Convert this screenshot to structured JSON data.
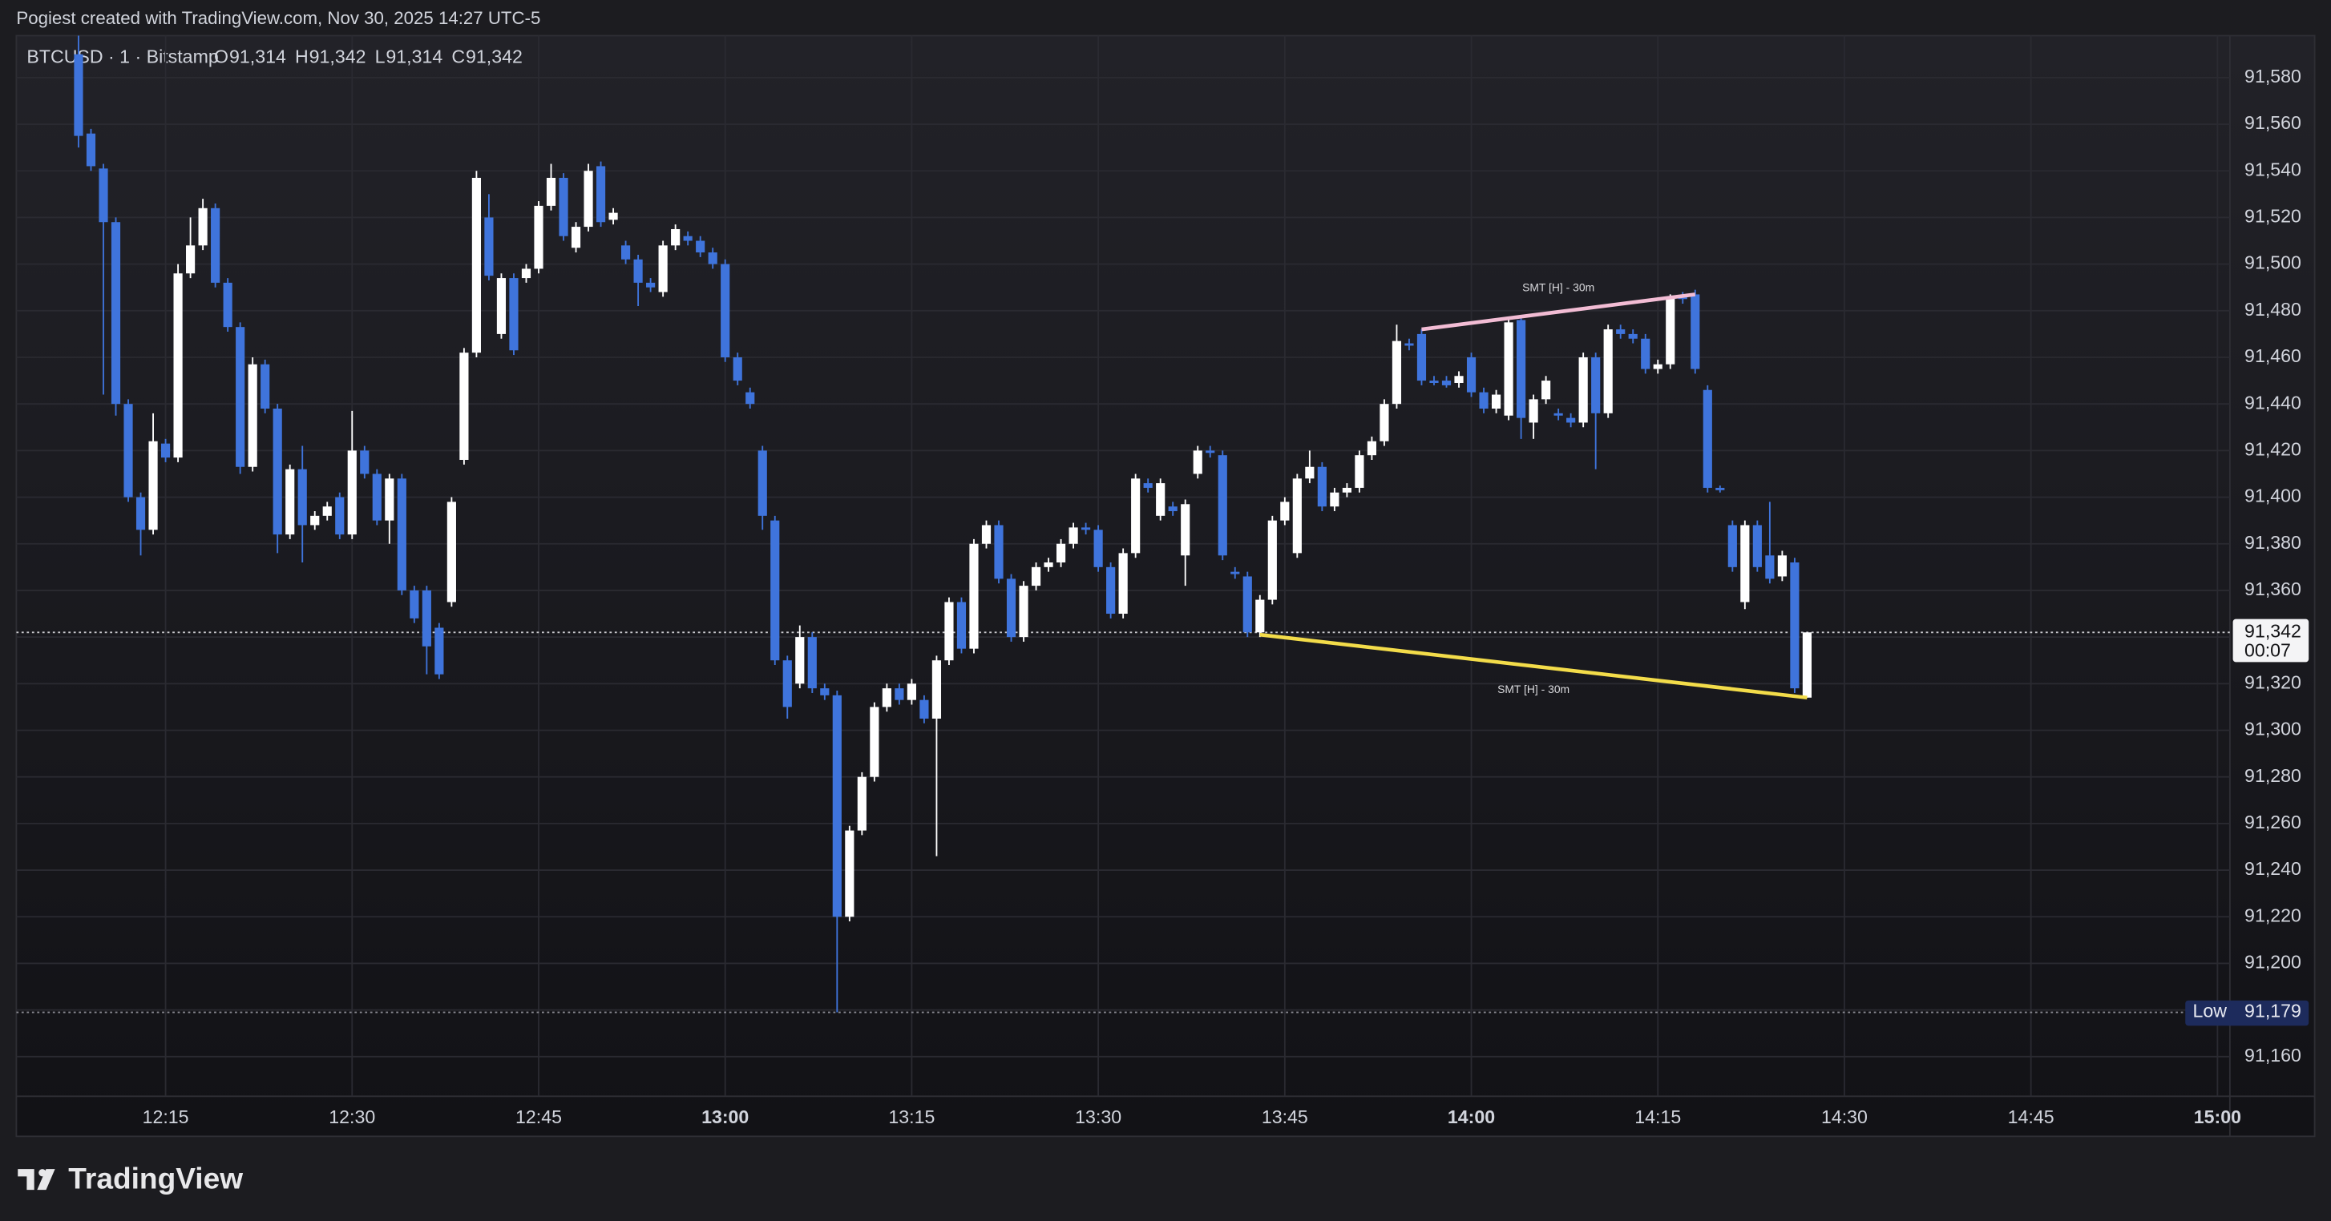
{
  "header": {
    "text": "Pogiest created with TradingView.com, Nov 30, 2025 14:27 UTC-5"
  },
  "logo": {
    "text": "TradingView"
  },
  "chart_data": {
    "type": "candlestick",
    "legend": {
      "symbol": "BTCUSD · 1 · Bitstamp",
      "ohlc": [
        {
          "name": "O",
          "value": "91,314"
        },
        {
          "name": "H",
          "value": "91,342"
        },
        {
          "name": "L",
          "value": "91,314"
        },
        {
          "name": "C",
          "value": "91,342"
        }
      ]
    },
    "up_color": "#ffffff",
    "down_color": "#3f74dc",
    "grid": true,
    "xlim": [
      "12:03",
      "15:01"
    ],
    "xticks": [
      "12:15",
      "12:30",
      "12:45",
      "13:00",
      "13:15",
      "13:30",
      "13:45",
      "14:00",
      "14:15",
      "14:30",
      "14:45",
      "15:00"
    ],
    "ylim": [
      91143,
      91598
    ],
    "yticks": [
      {
        "value": 91160,
        "label": "91,160"
      },
      {
        "value": 91180,
        "label": "91,180"
      },
      {
        "value": 91200,
        "label": "91,200"
      },
      {
        "value": 91220,
        "label": "91,220"
      },
      {
        "value": 91240,
        "label": "91,240"
      },
      {
        "value": 91260,
        "label": "91,260"
      },
      {
        "value": 91280,
        "label": "91,280"
      },
      {
        "value": 91300,
        "label": "91,300"
      },
      {
        "value": 91320,
        "label": "91,320"
      },
      {
        "value": 91340,
        "label": "91,340"
      },
      {
        "value": 91360,
        "label": "91,360"
      },
      {
        "value": 91380,
        "label": "91,380"
      },
      {
        "value": 91400,
        "label": "91,400"
      },
      {
        "value": 91420,
        "label": "91,420"
      },
      {
        "value": 91440,
        "label": "91,440"
      },
      {
        "value": 91460,
        "label": "91,460"
      },
      {
        "value": 91480,
        "label": "91,480"
      },
      {
        "value": 91500,
        "label": "91,500"
      },
      {
        "value": 91520,
        "label": "91,520"
      },
      {
        "value": 91540,
        "label": "91,540"
      },
      {
        "value": 91560,
        "label": "91,560"
      },
      {
        "value": 91580,
        "label": "91,580"
      }
    ],
    "x": [
      "12:08",
      "12:09",
      "12:10",
      "12:11",
      "12:12",
      "12:13",
      "12:14",
      "12:15",
      "12:16",
      "12:17",
      "12:18",
      "12:19",
      "12:20",
      "12:21",
      "12:22",
      "12:23",
      "12:24",
      "12:25",
      "12:26",
      "12:27",
      "12:28",
      "12:29",
      "12:30",
      "12:31",
      "12:32",
      "12:33",
      "12:34",
      "12:35",
      "12:36",
      "12:37",
      "12:38",
      "12:39",
      "12:40",
      "12:41",
      "12:42",
      "12:43",
      "12:44",
      "12:45",
      "12:46",
      "12:47",
      "12:48",
      "12:49",
      "12:50",
      "12:51",
      "12:52",
      "12:53",
      "12:54",
      "12:55",
      "12:56",
      "12:57",
      "12:58",
      "12:59",
      "13:00",
      "13:01",
      "13:02",
      "13:03",
      "13:04",
      "13:05",
      "13:06",
      "13:07",
      "13:08",
      "13:09",
      "13:10",
      "13:11",
      "13:12",
      "13:13",
      "13:14",
      "13:15",
      "13:16",
      "13:17",
      "13:18",
      "13:19",
      "13:20",
      "13:21",
      "13:22",
      "13:23",
      "13:24",
      "13:25",
      "13:26",
      "13:27",
      "13:28",
      "13:29",
      "13:30",
      "13:31",
      "13:32",
      "13:33",
      "13:34",
      "13:35",
      "13:36",
      "13:37",
      "13:38",
      "13:39",
      "13:40",
      "13:41",
      "13:42",
      "13:43",
      "13:44",
      "13:45",
      "13:46",
      "13:47",
      "13:48",
      "13:49",
      "13:50",
      "13:51",
      "13:52",
      "13:53",
      "13:54",
      "13:55",
      "13:56",
      "13:57",
      "13:58",
      "13:59",
      "14:00",
      "14:01",
      "14:02",
      "14:03",
      "14:04",
      "14:05",
      "14:06",
      "14:07",
      "14:08",
      "14:09",
      "14:10",
      "14:11",
      "14:12",
      "14:13",
      "14:14",
      "14:15",
      "14:16",
      "14:17",
      "14:18",
      "14:19",
      "14:20",
      "14:21",
      "14:22",
      "14:23",
      "14:24",
      "14:25",
      "14:26",
      "14:27"
    ],
    "candles": [
      [
        91590,
        91598,
        91550,
        91555
      ],
      [
        91556,
        91558,
        91540,
        91542
      ],
      [
        91541,
        91543,
        91444,
        91518
      ],
      [
        91518,
        91520,
        91435,
        91440
      ],
      [
        91440,
        91442,
        91398,
        91400
      ],
      [
        91400,
        91402,
        91375,
        91386
      ],
      [
        91386,
        91436,
        91384,
        91424
      ],
      [
        91423,
        91425,
        91415,
        91417
      ],
      [
        91417,
        91500,
        91415,
        91496
      ],
      [
        91496,
        91520,
        91494,
        91508
      ],
      [
        91508,
        91528,
        91506,
        91524
      ],
      [
        91524,
        91526,
        91490,
        91492
      ],
      [
        91492,
        91494,
        91471,
        91473
      ],
      [
        91473,
        91475,
        91410,
        91413
      ],
      [
        91413,
        91460,
        91411,
        91457
      ],
      [
        91457,
        91459,
        91436,
        91438
      ],
      [
        91438,
        91440,
        91376,
        91384
      ],
      [
        91384,
        91414,
        91382,
        91412
      ],
      [
        91412,
        91422,
        91372,
        91388
      ],
      [
        91388,
        91394,
        91386,
        91392
      ],
      [
        91392,
        91398,
        91390,
        91396
      ],
      [
        91400,
        91402,
        91382,
        91384
      ],
      [
        91384,
        91437,
        91382,
        91420
      ],
      [
        91420,
        91422,
        91408,
        91410
      ],
      [
        91410,
        91412,
        91388,
        91390
      ],
      [
        91390,
        91410,
        91380,
        91408
      ],
      [
        91408,
        91410,
        91358,
        91360
      ],
      [
        91360,
        91362,
        91346,
        91348
      ],
      [
        91360,
        91362,
        91324,
        91336
      ],
      [
        91344,
        91346,
        91322,
        91324
      ],
      [
        91355,
        91400,
        91353,
        91398
      ],
      [
        91416,
        91464,
        91414,
        91462
      ],
      [
        91462,
        91540,
        91460,
        91537
      ],
      [
        91520,
        91530,
        91493,
        91495
      ],
      [
        91470,
        91496,
        91468,
        91494
      ],
      [
        91494,
        91496,
        91461,
        91463
      ],
      [
        91494,
        91500,
        91492,
        91498
      ],
      [
        91498,
        91527,
        91496,
        91525
      ],
      [
        91525,
        91543,
        91523,
        91537
      ],
      [
        91537,
        91539,
        91510,
        91512
      ],
      [
        91507,
        91518,
        91505,
        91516
      ],
      [
        91516,
        91543,
        91514,
        91540
      ],
      [
        91542,
        91544,
        91516,
        91518
      ],
      [
        91519,
        91524,
        91517,
        91522
      ],
      [
        91508,
        91510,
        91500,
        91502
      ],
      [
        91502,
        91504,
        91482,
        91492
      ],
      [
        91492,
        91494,
        91488,
        91490
      ],
      [
        91488,
        91510,
        91486,
        91508
      ],
      [
        91508,
        91517,
        91506,
        91515
      ],
      [
        91512,
        91514,
        91508,
        91510
      ],
      [
        91510,
        91512,
        91503,
        91505
      ],
      [
        91505,
        91507,
        91498,
        91500
      ],
      [
        91500,
        91502,
        91458,
        91460
      ],
      [
        91460,
        91462,
        91448,
        91450
      ],
      [
        91445,
        91447,
        91438,
        91440
      ],
      [
        91420,
        91422,
        91386,
        91392
      ],
      [
        91390,
        91392,
        91328,
        91330
      ],
      [
        91330,
        91332,
        91305,
        91310
      ],
      [
        91320,
        91345,
        91318,
        91340
      ],
      [
        91340,
        91342,
        91316,
        91318
      ],
      [
        91318,
        91320,
        91313,
        91315
      ],
      [
        91315,
        91317,
        91179,
        91220
      ],
      [
        91220,
        91259,
        91218,
        91257
      ],
      [
        91257,
        91282,
        91255,
        91280
      ],
      [
        91280,
        91312,
        91278,
        91310
      ],
      [
        91310,
        91320,
        91308,
        91318
      ],
      [
        91318,
        91320,
        91311,
        91313
      ],
      [
        91313,
        91322,
        91311,
        91320
      ],
      [
        91313,
        91315,
        91303,
        91305
      ],
      [
        91305,
        91332,
        91246,
        91330
      ],
      [
        91330,
        91357,
        91328,
        91355
      ],
      [
        91355,
        91357,
        91333,
        91335
      ],
      [
        91335,
        91382,
        91333,
        91380
      ],
      [
        91380,
        91390,
        91378,
        91388
      ],
      [
        91388,
        91390,
        91363,
        91365
      ],
      [
        91365,
        91367,
        91338,
        91340
      ],
      [
        91340,
        91364,
        91338,
        91362
      ],
      [
        91362,
        91372,
        91360,
        91370
      ],
      [
        91370,
        91374,
        91368,
        91372
      ],
      [
        91372,
        91382,
        91370,
        91380
      ],
      [
        91380,
        91389,
        91378,
        91387
      ],
      [
        91387,
        91389,
        91384,
        91386
      ],
      [
        91386,
        91388,
        91368,
        91370
      ],
      [
        91370,
        91372,
        91348,
        91350
      ],
      [
        91350,
        91378,
        91348,
        91376
      ],
      [
        91376,
        91410,
        91374,
        91408
      ],
      [
        91406,
        91408,
        91402,
        91404
      ],
      [
        91392,
        91408,
        91390,
        91406
      ],
      [
        91396,
        91398,
        91392,
        91394
      ],
      [
        91375,
        91399,
        91362,
        91397
      ],
      [
        91410,
        91422,
        91408,
        91420
      ],
      [
        91420,
        91422,
        91417,
        91419
      ],
      [
        91418,
        91420,
        91373,
        91375
      ],
      [
        91368,
        91370,
        91365,
        91367
      ],
      [
        91366,
        91368,
        91340,
        91342
      ],
      [
        91342,
        91358,
        91340,
        91356
      ],
      [
        91356,
        91392,
        91354,
        91390
      ],
      [
        91390,
        91400,
        91388,
        91398
      ],
      [
        91376,
        91410,
        91374,
        91408
      ],
      [
        91408,
        91420,
        91406,
        91413
      ],
      [
        91413,
        91415,
        91394,
        91396
      ],
      [
        91396,
        91404,
        91394,
        91402
      ],
      [
        91402,
        91406,
        91400,
        91404
      ],
      [
        91404,
        91420,
        91402,
        91418
      ],
      [
        91418,
        91426,
        91416,
        91424
      ],
      [
        91424,
        91442,
        91422,
        91440
      ],
      [
        91440,
        91474,
        91438,
        91467
      ],
      [
        91466,
        91468,
        91463,
        91465
      ],
      [
        91470,
        91472,
        91448,
        91450
      ],
      [
        91450,
        91452,
        91448,
        91449
      ],
      [
        91450,
        91452,
        91447,
        91448
      ],
      [
        91449,
        91454,
        91447,
        91452
      ],
      [
        91460,
        91462,
        91443,
        91445
      ],
      [
        91445,
        91447,
        91436,
        91438
      ],
      [
        91438,
        91446,
        91436,
        91444
      ],
      [
        91435,
        91477,
        91433,
        91475
      ],
      [
        91476,
        91478,
        91425,
        91434
      ],
      [
        91432,
        91444,
        91425,
        91442
      ],
      [
        91442,
        91452,
        91440,
        91450
      ],
      [
        91436,
        91438,
        91433,
        91435
      ],
      [
        91434,
        91436,
        91430,
        91432
      ],
      [
        91432,
        91462,
        91430,
        91460
      ],
      [
        91460,
        91462,
        91412,
        91436
      ],
      [
        91436,
        91474,
        91434,
        91472
      ],
      [
        91472,
        91474,
        91468,
        91470
      ],
      [
        91470,
        91472,
        91466,
        91468
      ],
      [
        91468,
        91470,
        91453,
        91455
      ],
      [
        91455,
        91459,
        91453,
        91457
      ],
      [
        91457,
        91487,
        91455,
        91486
      ],
      [
        91486,
        91488,
        91483,
        91485
      ],
      [
        91487,
        91489,
        91453,
        91455
      ],
      [
        91446,
        91448,
        91402,
        91404
      ],
      [
        91404,
        91405,
        91402,
        91403
      ],
      [
        91388,
        91390,
        91368,
        91370
      ],
      [
        91355,
        91390,
        91352,
        91388
      ],
      [
        91388,
        91390,
        91368,
        91370
      ],
      [
        91375,
        91398,
        91363,
        91365
      ],
      [
        91366,
        91377,
        91364,
        91375
      ],
      [
        91372,
        91374,
        91316,
        91318
      ],
      [
        91314,
        91342,
        91314,
        91342
      ]
    ],
    "lines": [
      {
        "label": "SMT [H] - 30m",
        "color": "#f2bcd4",
        "x": [
          "13:56",
          "14:18"
        ],
        "y": [
          91472,
          91487
        ]
      },
      {
        "label": "SMT [H] - 30m",
        "color": "#f3dc4a",
        "x": [
          "13:43",
          "14:27"
        ],
        "y": [
          91341,
          91314
        ]
      }
    ],
    "last_price": {
      "value": 91342,
      "label": "91,342",
      "countdown": "00:07"
    },
    "low": {
      "name": "Low",
      "value": 91179,
      "label": "91,179"
    }
  }
}
